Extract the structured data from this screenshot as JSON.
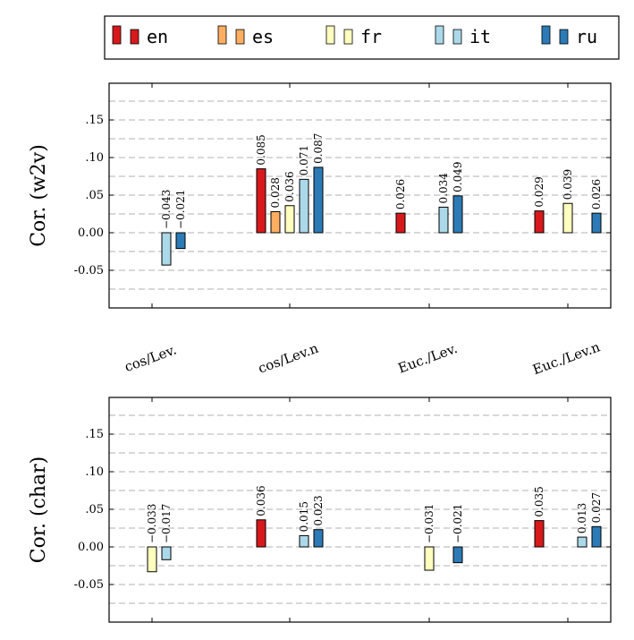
{
  "legend": {
    "items": [
      {
        "label": "en",
        "color": "#D7191C"
      },
      {
        "label": "es",
        "color": "#FDAE61"
      },
      {
        "label": "fr",
        "color": "#FFFFBF"
      },
      {
        "label": "it",
        "color": "#ABD9E9"
      },
      {
        "label": "ru",
        "color": "#2C7BB6"
      }
    ]
  },
  "chart_data": {
    "type": "bar",
    "categories": [
      "cos/Lev.",
      "cos/Lev.n",
      "Euc./Lev.",
      "Euc./Lev.n"
    ],
    "series_names": [
      "en",
      "es",
      "fr",
      "it",
      "ru"
    ],
    "yticks": [
      ".15",
      ".10",
      ".05",
      "0.00",
      "-0.05"
    ],
    "ylim": [
      -0.1,
      0.2
    ],
    "grid": "dashed horizontal",
    "legend_position": "top",
    "panels": [
      {
        "ylabel": "Cor. (w2v)",
        "bars": [
          {
            "category": 0,
            "series": 3,
            "value": -0.043,
            "label": "−0.043"
          },
          {
            "category": 0,
            "series": 4,
            "value": -0.021,
            "label": "−0.021"
          },
          {
            "category": 1,
            "series": 0,
            "value": 0.085,
            "label": "0.085"
          },
          {
            "category": 1,
            "series": 1,
            "value": 0.028,
            "label": "0.028"
          },
          {
            "category": 1,
            "series": 2,
            "value": 0.036,
            "label": "0.036"
          },
          {
            "category": 1,
            "series": 3,
            "value": 0.071,
            "label": "0.071"
          },
          {
            "category": 1,
            "series": 4,
            "value": 0.087,
            "label": "0.087"
          },
          {
            "category": 2,
            "series": 0,
            "value": 0.026,
            "label": "0.026"
          },
          {
            "category": 2,
            "series": 3,
            "value": 0.034,
            "label": "0.034"
          },
          {
            "category": 2,
            "series": 4,
            "value": 0.049,
            "label": "0.049"
          },
          {
            "category": 3,
            "series": 0,
            "value": 0.029,
            "label": "0.029"
          },
          {
            "category": 3,
            "series": 2,
            "value": 0.039,
            "label": "0.039"
          },
          {
            "category": 3,
            "series": 4,
            "value": 0.026,
            "label": "0.026"
          }
        ]
      },
      {
        "ylabel": "Cor. (char)",
        "bars": [
          {
            "category": 0,
            "series": 2,
            "value": -0.033,
            "label": "−0.033"
          },
          {
            "category": 0,
            "series": 3,
            "value": -0.017,
            "label": "−0.017"
          },
          {
            "category": 1,
            "series": 0,
            "value": 0.036,
            "label": "0.036"
          },
          {
            "category": 1,
            "series": 3,
            "value": 0.015,
            "label": "0.015"
          },
          {
            "category": 1,
            "series": 4,
            "value": 0.023,
            "label": "0.023"
          },
          {
            "category": 2,
            "series": 2,
            "value": -0.031,
            "label": "−0.031"
          },
          {
            "category": 2,
            "series": 4,
            "value": -0.021,
            "label": "−0.021"
          },
          {
            "category": 3,
            "series": 0,
            "value": 0.035,
            "label": "0.035"
          },
          {
            "category": 3,
            "series": 3,
            "value": 0.013,
            "label": "0.013"
          },
          {
            "category": 3,
            "series": 4,
            "value": 0.027,
            "label": "0.027"
          }
        ]
      }
    ]
  }
}
